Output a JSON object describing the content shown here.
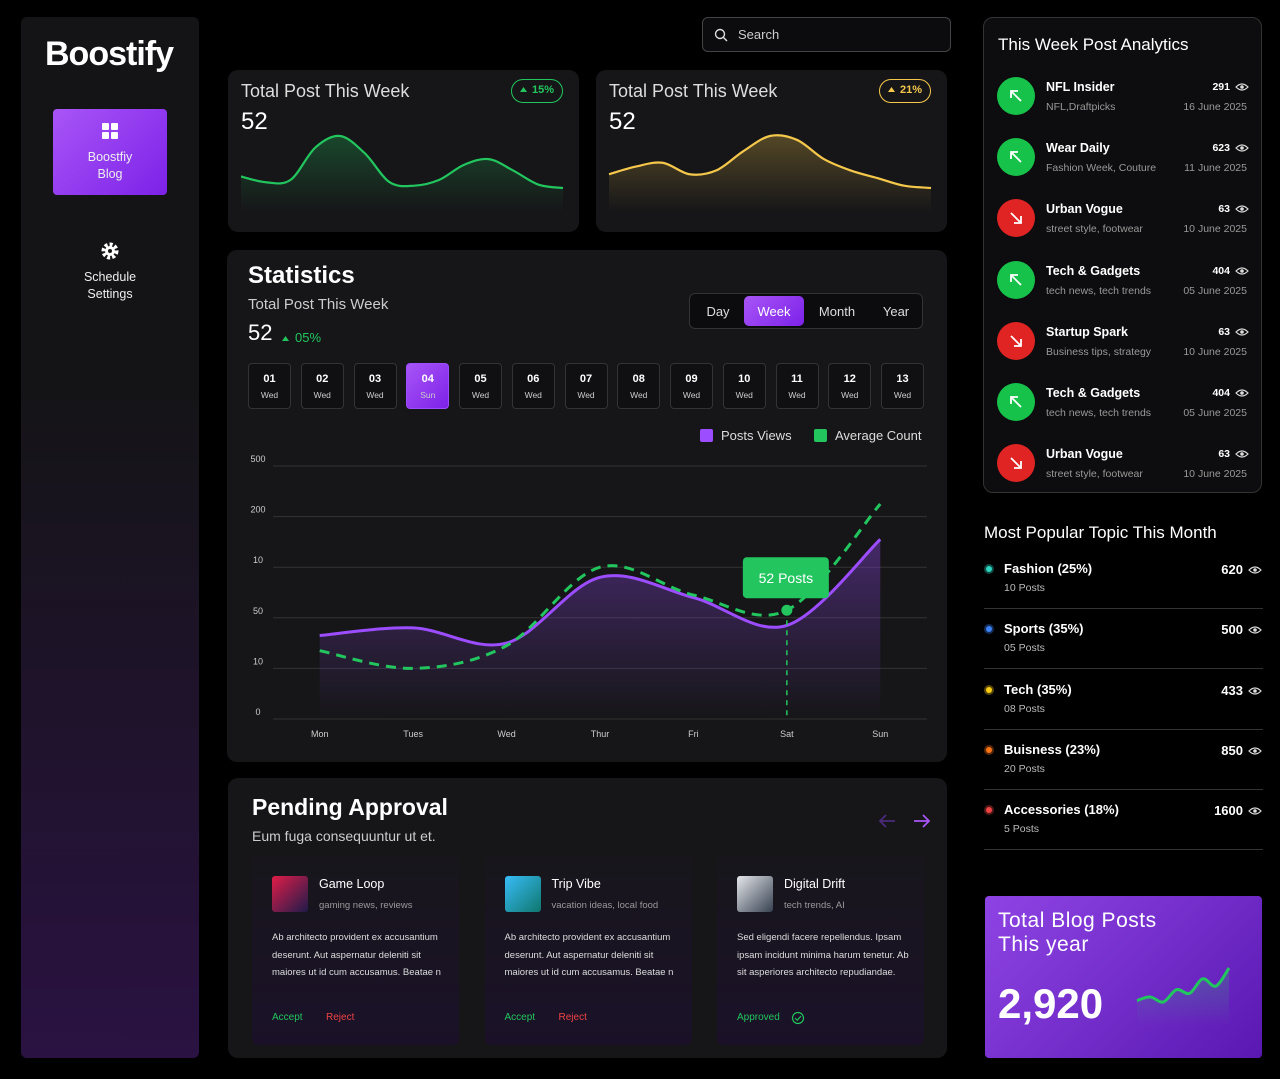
{
  "sidebar": {
    "logo": "Boostify",
    "nav": [
      {
        "label": "Boostfiy Blog",
        "active": true
      },
      {
        "label": "Schedule Settings",
        "active": false
      }
    ]
  },
  "search": {
    "placeholder": "Search"
  },
  "summary_cards": [
    {
      "title": "Total Post This Week",
      "value": "52",
      "change": "15%",
      "color": "#22c55e",
      "trend": [
        25,
        20,
        22,
        50,
        60,
        45,
        20,
        17,
        22,
        35,
        40,
        30,
        18,
        15
      ]
    },
    {
      "title": "Total Post This Week",
      "value": "52",
      "change": "21%",
      "color": "#f5c84c",
      "trend": [
        18,
        28,
        33,
        18,
        23,
        48,
        68,
        63,
        38,
        23,
        13,
        3,
        0
      ]
    }
  ],
  "statistics": {
    "title": "Statistics",
    "subtitle": "Total Post This Week",
    "value": "52",
    "change": "05%",
    "periods": [
      "Day",
      "Week",
      "Month",
      "Year"
    ],
    "active_period": "Week",
    "days": [
      {
        "num": "01",
        "day": "Wed"
      },
      {
        "num": "02",
        "day": "Wed"
      },
      {
        "num": "03",
        "day": "Wed"
      },
      {
        "num": "04",
        "day": "Sun",
        "active": true
      },
      {
        "num": "05",
        "day": "Wed"
      },
      {
        "num": "06",
        "day": "Wed"
      },
      {
        "num": "07",
        "day": "Wed"
      },
      {
        "num": "08",
        "day": "Wed"
      },
      {
        "num": "09",
        "day": "Wed"
      },
      {
        "num": "10",
        "day": "Wed"
      },
      {
        "num": "11",
        "day": "Wed"
      },
      {
        "num": "12",
        "day": "Wed"
      },
      {
        "num": "13",
        "day": "Wed"
      }
    ]
  },
  "chart_data": {
    "type": "line",
    "categories": [
      "Mon",
      "Tues",
      "Wed",
      "Thur",
      "Fri",
      "Sat",
      "Sun"
    ],
    "series": [
      {
        "name": "Posts Views",
        "color": "#9b4dff",
        "values": [
          1.65,
          1.8,
          1.5,
          2.8,
          2.4,
          1.85,
          3.55
        ],
        "area": true
      },
      {
        "name": "Average Count",
        "color": "#22c55e",
        "values": [
          1.35,
          1.0,
          1.45,
          3.0,
          2.45,
          2.15,
          4.25
        ],
        "dashed": true
      }
    ],
    "ylim": [
      0,
      5
    ],
    "yticks": [
      {
        "value": 0,
        "label": "0"
      },
      {
        "value": 1,
        "label": "10"
      },
      {
        "value": 2,
        "label": "50"
      },
      {
        "value": 3,
        "label": "10"
      },
      {
        "value": 4,
        "label": "200"
      },
      {
        "value": 5,
        "label": "500"
      }
    ],
    "grid": true,
    "legend": "top-right",
    "annotations": [
      {
        "text": "52 Posts",
        "x": "Sat",
        "series": "Average Count"
      }
    ]
  },
  "pending": {
    "title": "Pending Approval",
    "subtitle": "Eum fuga consequuntur ut et.",
    "cards": [
      {
        "name": "Game Loop",
        "tags": "gaming news, reviews",
        "text": "Ab architecto provident ex accusantium deserunt. Aut aspernatur deleniti sit maiores ut id cum accusamus. Beatae n",
        "actions": [
          "Accept",
          "Reject"
        ],
        "image": [
          "#e11d48",
          "#1e1b4b"
        ]
      },
      {
        "name": "Trip Vibe",
        "tags": "vacation ideas, local food",
        "text": "Ab architecto provident ex accusantium deserunt. Aut aspernatur deleniti sit maiores ut id cum accusamus. Beatae n",
        "actions": [
          "Accept",
          "Reject"
        ],
        "image": [
          "#38bdf8",
          "#0f766e"
        ]
      },
      {
        "name": "Digital Drift",
        "tags": "tech trends, AI",
        "text": "Sed eligendi facere repellendus. Ipsam ipsam incidunt minima harum tenetur. Ab sit asperiores architecto repudiandae.",
        "status": "Approved",
        "image": [
          "#e5e7eb",
          "#374151"
        ]
      }
    ]
  },
  "analytics": {
    "title": "This Week Post Analytics",
    "items": [
      {
        "name": "NFL Insider",
        "tags": "NFL,Draftpicks",
        "views": "291",
        "date": "16 June 2025",
        "trend": "up"
      },
      {
        "name": "Wear Daily",
        "tags": "Fashion Week, Couture",
        "views": "623",
        "date": "11 June 2025",
        "trend": "up"
      },
      {
        "name": "Urban Vogue",
        "tags": "street style, footwear",
        "views": "63",
        "date": "10 June 2025",
        "trend": "down"
      },
      {
        "name": "Tech & Gadgets",
        "tags": "tech news, tech trends",
        "views": "404",
        "date": "05 June 2025",
        "trend": "up"
      },
      {
        "name": "Startup Spark",
        "tags": "Business tips, strategy",
        "views": "63",
        "date": "10 June 2025",
        "trend": "down"
      },
      {
        "name": "Tech & Gadgets",
        "tags": "tech news, tech trends",
        "views": "404",
        "date": "05 June 2025",
        "trend": "up"
      },
      {
        "name": "Urban Vogue",
        "tags": "street style, footwear",
        "views": "63",
        "date": "10 June 2025",
        "trend": "down"
      }
    ]
  },
  "popular": {
    "title": "Most Popular Topic This Month",
    "items": [
      {
        "name": "Fashion (25%)",
        "posts": "10 Posts",
        "views": "620",
        "color": "#2dd4bf"
      },
      {
        "name": "Sports (35%)",
        "posts": "05 Posts",
        "views": "500",
        "color": "#3b82f6"
      },
      {
        "name": "Tech (35%)",
        "posts": "08 Posts",
        "views": "433",
        "color": "#facc15"
      },
      {
        "name": "Buisness (23%)",
        "posts": "20 Posts",
        "views": "850",
        "color": "#f97316"
      },
      {
        "name": "Accessories (18%)",
        "posts": "5 Posts",
        "views": "1600",
        "color": "#ef4444"
      }
    ]
  },
  "total": {
    "title": "Total Blog Posts This year",
    "value": "2,920",
    "color": "#22c55e",
    "trend": [
      40,
      45,
      38,
      55,
      50,
      70,
      60,
      85
    ]
  }
}
